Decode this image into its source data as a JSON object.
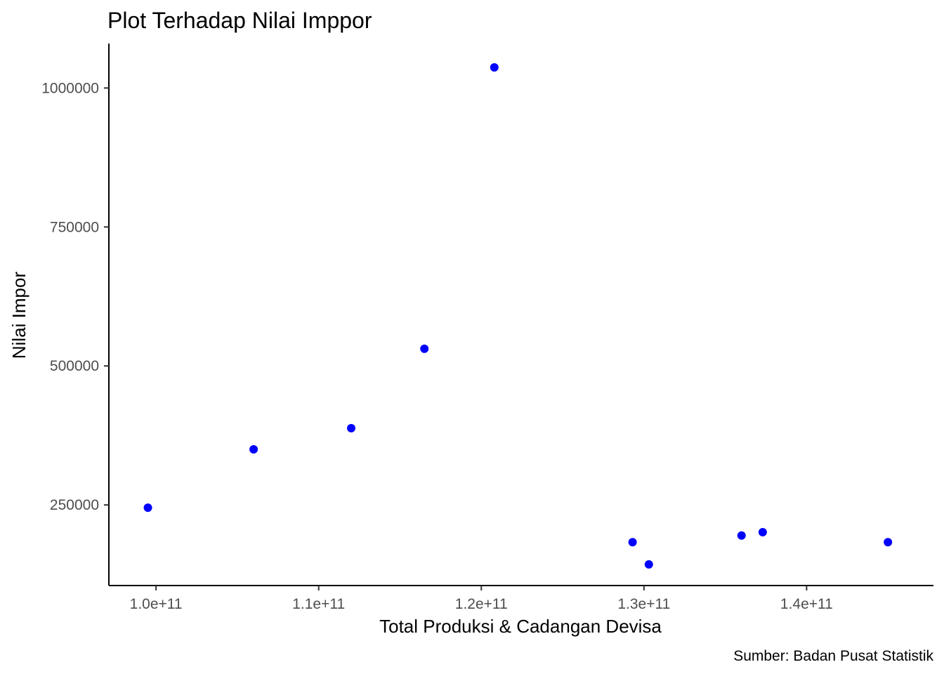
{
  "chart_data": {
    "type": "scatter",
    "title": "Plot Terhadap Nilai Imppor",
    "xlabel": "Total Produksi & Cadangan Devisa",
    "ylabel": "Nilai Impor",
    "caption": "Sumber: Badan Pusat Statistik",
    "xlim": [
      97100000000.0,
      147800000000.0
    ],
    "ylim": [
      105000,
      1080000
    ],
    "x_ticks": [
      100000000000.0,
      110000000000.0,
      120000000000.0,
      130000000000.0,
      140000000000.0
    ],
    "x_tick_labels": [
      "1.0e+11",
      "1.1e+11",
      "1.2e+11",
      "1.3e+11",
      "1.4e+11"
    ],
    "y_ticks": [
      250000,
      500000,
      750000,
      1000000
    ],
    "y_tick_labels": [
      "250000",
      "500000",
      "750000",
      "1000000"
    ],
    "grid": false,
    "legend": "none",
    "point_color": "#0000ff",
    "points": [
      {
        "x": 99500000000.0,
        "y": 245000
      },
      {
        "x": 106000000000.0,
        "y": 350000
      },
      {
        "x": 112000000000.0,
        "y": 388000
      },
      {
        "x": 116500000000.0,
        "y": 531000
      },
      {
        "x": 120800000000.0,
        "y": 1037000
      },
      {
        "x": 129300000000.0,
        "y": 183000
      },
      {
        "x": 130300000000.0,
        "y": 143000
      },
      {
        "x": 136000000000.0,
        "y": 195000
      },
      {
        "x": 137300000000.0,
        "y": 201000
      },
      {
        "x": 145000000000.0,
        "y": 183000
      }
    ]
  }
}
